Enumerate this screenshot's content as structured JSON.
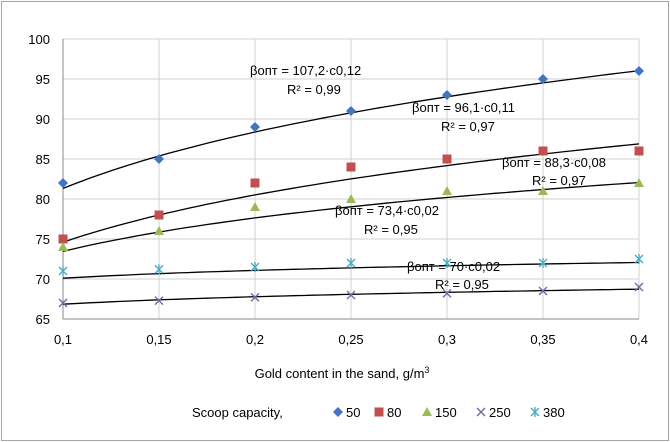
{
  "chart_data": {
    "type": "scatter",
    "title": "",
    "xlabel": "Gold content in the sand, g/m",
    "xlabel_sup": "3",
    "ylabel": "",
    "x": [
      0.1,
      0.15,
      0.2,
      0.25,
      0.3,
      0.35,
      0.4
    ],
    "x_tick_labels": [
      "0,1",
      "0,15",
      "0,2",
      "0,25",
      "0,3",
      "0,35",
      "0,4"
    ],
    "xlim": [
      0.1,
      0.4
    ],
    "ylim": [
      65,
      100
    ],
    "y_ticks": [
      65,
      70,
      75,
      80,
      85,
      90,
      95,
      100
    ],
    "grid": true,
    "legend_title": "Scoop capacity,",
    "legend_position": "bottom",
    "series": [
      {
        "name": "50",
        "marker": "diamond",
        "color": "#4472c4",
        "values": [
          82,
          85,
          89,
          91,
          93,
          95,
          96
        ],
        "trend": {
          "a": 107.2,
          "b": 0.12
        }
      },
      {
        "name": "80",
        "marker": "square",
        "color": "#c0504d",
        "values": [
          75,
          78,
          82,
          84,
          85,
          86,
          86
        ],
        "trend": {
          "a": 96.1,
          "b": 0.11
        }
      },
      {
        "name": "150",
        "marker": "triangle",
        "color": "#9bbb59",
        "values": [
          74,
          76,
          79,
          80,
          81,
          81,
          82
        ],
        "trend": {
          "a": 88.3,
          "b": 0.08
        }
      },
      {
        "name": "250",
        "marker": "x",
        "color": "#8064a2",
        "values": [
          67,
          67.3,
          67.7,
          68,
          68.2,
          68.5,
          69
        ],
        "trend": {
          "a": 70,
          "b": 0.02
        }
      },
      {
        "name": "380",
        "marker": "star",
        "color": "#4bacc6",
        "values": [
          71,
          71.2,
          71.5,
          72,
          72,
          72,
          72.5
        ],
        "trend": {
          "a": 73.4,
          "b": 0.02
        }
      }
    ],
    "annotations": [
      {
        "eq": "βопт = 107,2·c0,12",
        "r2": "R² = 0,99"
      },
      {
        "eq": "βопт = 96,1·c0,11",
        "r2": "R² = 0,97"
      },
      {
        "eq": "βопт = 88,3·c0,08",
        "r2": "R² = 0,97"
      },
      {
        "eq": "βопт = 73,4·c0,02",
        "r2": "R² = 0,95"
      },
      {
        "eq": "βопт = 70·c0,02",
        "r2": "R² = 0,95"
      }
    ]
  }
}
